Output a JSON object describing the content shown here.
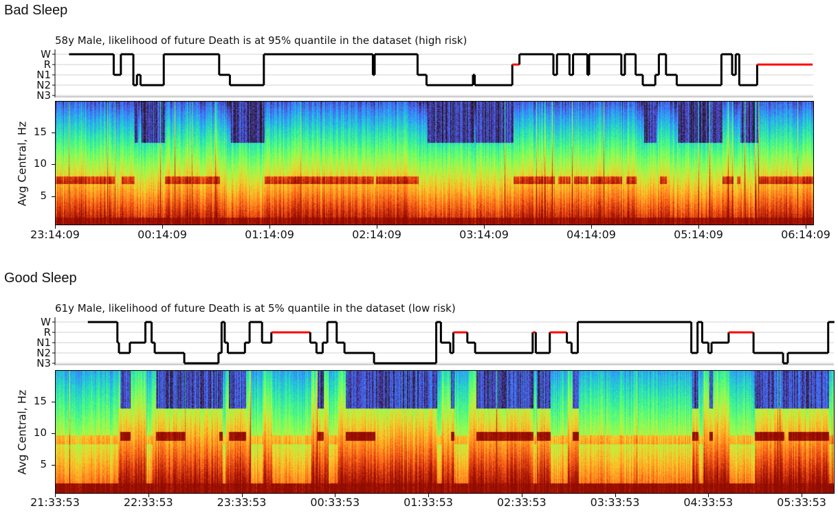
{
  "panels": [
    {
      "heading": "Bad Sleep"
    },
    {
      "heading": "Good Sleep"
    }
  ],
  "colors": {
    "stage_line": "#000000",
    "rem_line": "#ff0000",
    "grid": "#d0d0d0",
    "colormap": "turbo"
  },
  "chart_data": [
    {
      "type": "line",
      "step": true,
      "title": "58y Male, likelihood of future Death is at 95% quantile in the dataset (high risk)",
      "stages": [
        "W",
        "R",
        "N1",
        "N2",
        "N3"
      ],
      "x_range": [
        "23:14:09",
        "06:18:43"
      ],
      "hypnogram": [
        [
          "23:22",
          "W"
        ],
        [
          "23:47",
          "N1"
        ],
        [
          "23:51",
          "W"
        ],
        [
          "23:58",
          "N2"
        ],
        [
          "00:00",
          "N1"
        ],
        [
          "00:02",
          "N2"
        ],
        [
          "00:15",
          "W"
        ],
        [
          "00:46",
          "N1"
        ],
        [
          "00:52",
          "N2"
        ],
        [
          "01:11",
          "W"
        ],
        [
          "02:12",
          "N1"
        ],
        [
          "02:13",
          "W"
        ],
        [
          "02:37",
          "N1"
        ],
        [
          "02:42",
          "N2"
        ],
        [
          "03:08",
          "N1"
        ],
        [
          "03:09",
          "N2"
        ],
        [
          "03:30",
          "R"
        ],
        [
          "03:34",
          "W"
        ],
        [
          "03:53",
          "N1"
        ],
        [
          "03:55",
          "W"
        ],
        [
          "04:02",
          "N1"
        ],
        [
          "04:04",
          "W"
        ],
        [
          "04:12",
          "N1"
        ],
        [
          "04:13",
          "W"
        ],
        [
          "04:31",
          "N1"
        ],
        [
          "04:33",
          "W"
        ],
        [
          "04:39",
          "N1"
        ],
        [
          "04:43",
          "N2"
        ],
        [
          "04:50",
          "N1"
        ],
        [
          "04:52",
          "W"
        ],
        [
          "04:56",
          "N1"
        ],
        [
          "05:02",
          "N2"
        ],
        [
          "05:27",
          "W"
        ],
        [
          "05:33",
          "N1"
        ],
        [
          "05:35",
          "W"
        ],
        [
          "05:37",
          "N2"
        ],
        [
          "05:47",
          "R"
        ],
        [
          "06:18",
          "end"
        ]
      ],
      "spectrogram": {
        "type": "heatmap",
        "ylabel": "Avg Central, Hz",
        "yticks": [
          "5",
          "10",
          "15"
        ],
        "ylim": [
          0.4,
          20
        ],
        "xticks": [
          "23:14:09",
          "00:14:09",
          "01:14:09",
          "02:14:09",
          "03:14:09",
          "04:14:09",
          "05:14:09",
          "06:14:09"
        ]
      }
    },
    {
      "type": "line",
      "step": true,
      "title": "61y Male, likelihood of future Death is at 5% quantile in the dataset (low risk)",
      "stages": [
        "W",
        "R",
        "N1",
        "N2",
        "N3"
      ],
      "x_range": [
        "21:33:53",
        "05:55:00"
      ],
      "hypnogram": [
        [
          "21:55",
          "W"
        ],
        [
          "22:14",
          "N1"
        ],
        [
          "22:15",
          "N2"
        ],
        [
          "22:22",
          "N1"
        ],
        [
          "22:32",
          "W"
        ],
        [
          "22:36",
          "N1"
        ],
        [
          "22:38",
          "N2"
        ],
        [
          "22:57",
          "N3"
        ],
        [
          "23:19",
          "N2"
        ],
        [
          "23:21",
          "W"
        ],
        [
          "23:23",
          "N1"
        ],
        [
          "23:25",
          "N2"
        ],
        [
          "23:36",
          "N1"
        ],
        [
          "23:39",
          "W"
        ],
        [
          "23:47",
          "N1"
        ],
        [
          "23:53",
          "R"
        ],
        [
          "00:18",
          "N1"
        ],
        [
          "00:22",
          "N2"
        ],
        [
          "00:26",
          "N1"
        ],
        [
          "00:29",
          "W"
        ],
        [
          "00:35",
          "N1"
        ],
        [
          "00:40",
          "N2"
        ],
        [
          "00:59",
          "N3"
        ],
        [
          "01:39",
          "W"
        ],
        [
          "01:42",
          "N1"
        ],
        [
          "01:48",
          "N2"
        ],
        [
          "01:50",
          "R"
        ],
        [
          "01:59",
          "N1"
        ],
        [
          "02:04",
          "N2"
        ],
        [
          "02:41",
          "R"
        ],
        [
          "02:43",
          "N2"
        ],
        [
          "02:52",
          "R"
        ],
        [
          "03:03",
          "N1"
        ],
        [
          "03:06",
          "N2"
        ],
        [
          "03:10",
          "W"
        ],
        [
          "04:23",
          "N2"
        ],
        [
          "04:27",
          "W"
        ],
        [
          "04:30",
          "N1"
        ],
        [
          "04:34",
          "N2"
        ],
        [
          "04:36",
          "N1"
        ],
        [
          "04:47",
          "R"
        ],
        [
          "05:03",
          "N2"
        ],
        [
          "05:22",
          "N3"
        ],
        [
          "05:25",
          "N2"
        ],
        [
          "05:51",
          "W"
        ],
        [
          "05:55",
          "end"
        ]
      ],
      "spectrogram": {
        "type": "heatmap",
        "ylabel": "Avg Central, Hz",
        "yticks": [
          "5",
          "10",
          "15"
        ],
        "ylim": [
          0.4,
          20
        ],
        "xticks": [
          "21:33:53",
          "22:33:53",
          "23:33:53",
          "00:33:53",
          "01:33:53",
          "02:33:53",
          "03:33:53",
          "04:33:53",
          "05:33:53"
        ]
      }
    }
  ]
}
